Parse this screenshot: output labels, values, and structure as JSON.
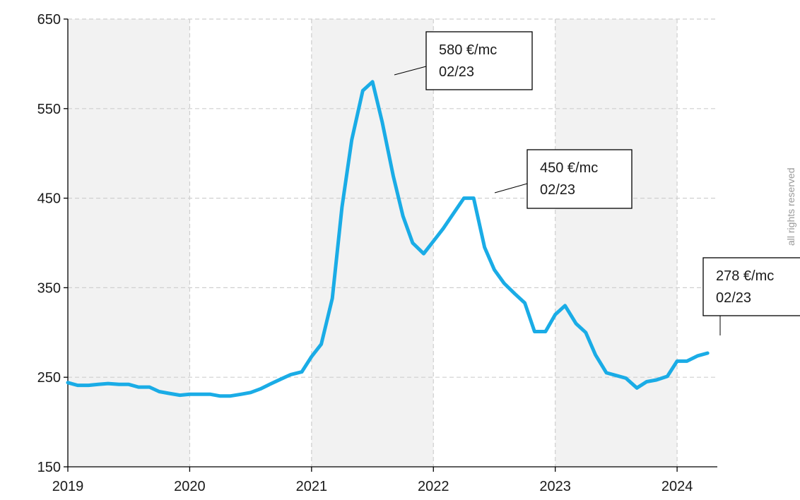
{
  "chart_data": {
    "type": "line",
    "title": "",
    "xlabel": "",
    "ylabel": "",
    "xlim": [
      2019,
      2024.33
    ],
    "ylim": [
      150,
      650
    ],
    "x_ticks": [
      "2019",
      "2020",
      "2021",
      "2022",
      "2023",
      "2024"
    ],
    "y_ticks": [
      "150",
      "250",
      "350",
      "450",
      "550",
      "650"
    ],
    "grid": true,
    "legend": "none",
    "line_color": "#1aace6",
    "series": [
      {
        "x": [
          2019.0,
          2019.08,
          2019.17,
          2019.25,
          2019.33,
          2019.42,
          2019.5,
          2019.58,
          2019.67,
          2019.75,
          2019.83,
          2019.92,
          2020.0,
          2020.08,
          2020.17,
          2020.25,
          2020.33,
          2020.42,
          2020.5,
          2020.58,
          2020.67,
          2020.75,
          2020.83,
          2020.92,
          2021.0,
          2021.08,
          2021.17,
          2021.25,
          2021.33,
          2021.42,
          2021.5,
          2021.58,
          2021.67,
          2021.75,
          2021.83,
          2021.92,
          2022.0,
          2022.08,
          2022.17,
          2022.25,
          2022.33,
          2022.42,
          2022.5,
          2022.58,
          2022.67,
          2022.75,
          2022.83,
          2022.92,
          2023.0,
          2023.08,
          2023.17,
          2023.25,
          2023.33,
          2023.42,
          2023.5,
          2023.58,
          2023.67,
          2023.75,
          2023.83,
          2023.92,
          2024.0,
          2024.08,
          2024.17,
          2024.25
        ],
        "y": [
          244,
          241,
          241,
          242,
          243,
          242,
          242,
          239,
          239,
          234,
          232,
          230,
          231,
          231,
          231,
          229,
          229,
          231,
          233,
          237,
          243,
          248,
          253,
          256,
          273,
          287,
          338,
          440,
          515,
          570,
          580,
          535,
          475,
          430,
          400,
          388,
          402,
          416,
          434,
          450,
          450,
          395,
          370,
          355,
          343,
          333,
          301,
          301,
          320,
          330,
          310,
          300,
          275,
          255,
          252,
          249,
          238,
          245,
          247,
          251,
          268,
          268,
          274,
          277
        ]
      }
    ],
    "annotations": [
      {
        "line1": "580 €/mc",
        "line2": "02/23"
      },
      {
        "line1": "450 €/mc",
        "line2": "02/23"
      },
      {
        "line1": "278 €/mc",
        "line2": "02/23"
      }
    ]
  },
  "watermark": "all rights reserved"
}
